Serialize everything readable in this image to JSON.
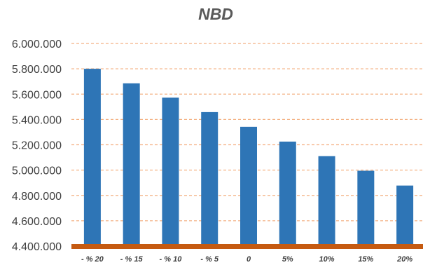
{
  "chart_data": {
    "type": "bar",
    "title": "NBD",
    "xlabel": "",
    "ylabel": "",
    "categories": [
      "- % 20",
      "- % 15",
      "- % 10",
      "- % 5",
      "0",
      "5%",
      "10%",
      "15%",
      "20%"
    ],
    "values": [
      5800000,
      5685000,
      5572000,
      5458000,
      5342000,
      5225000,
      5110000,
      4995000,
      4878000
    ],
    "ylim": [
      4400000,
      6000000
    ],
    "yticks": [
      "4.400.000",
      "4.600.000",
      "4.800.000",
      "5.000.000",
      "5.200.000",
      "5.400.000",
      "5.600.000",
      "5.800.000",
      "6.000.000"
    ],
    "grid": true,
    "legend": "none",
    "colors": {
      "bar": "#2e75b6",
      "baseline": "#c55a11",
      "grid": "#f4b183",
      "title": "#595959",
      "text": "#404040"
    }
  }
}
